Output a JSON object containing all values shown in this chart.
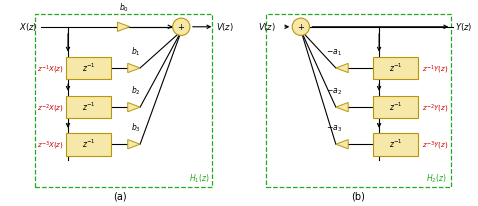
{
  "fig_width": 4.78,
  "fig_height": 2.06,
  "dpi": 100,
  "bg_color": "#ffffff",
  "box_color": "#f5e8a8",
  "box_edge_color": "#b8960a",
  "dashed_box_color": "#22aa22",
  "signal_color": "#cc0000",
  "text_color": "#000000",
  "triangle_color": "#f5e8a8",
  "triangle_edge": "#b8960a",
  "summer_color": "#f5e8a8",
  "summer_edge": "#b8960a"
}
